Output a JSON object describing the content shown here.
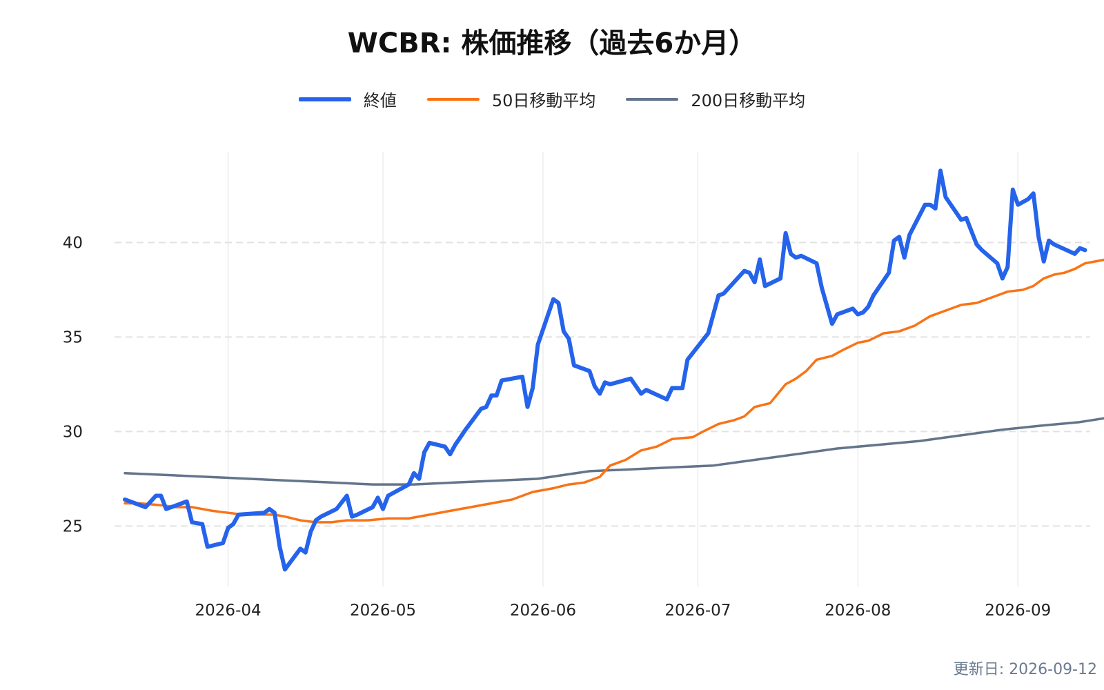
{
  "chart_data": {
    "type": "line",
    "title": "WCBR: 株価推移（過去6か月）",
    "xlabel": "",
    "ylabel": "",
    "x_ticks": [
      "2026-04",
      "2026-05",
      "2026-06",
      "2026-07",
      "2026-08",
      "2026-09"
    ],
    "y_ticks": [
      25,
      30,
      35,
      40
    ],
    "xlim": [
      "2026-03-10",
      "2026-09-15"
    ],
    "ylim": [
      21.8,
      44.8
    ],
    "grid": {
      "x": true,
      "y": true
    },
    "legend_position": "top-center",
    "series": [
      {
        "name": "終値",
        "color": "#2563eb",
        "points": [
          [
            "2026-03-12",
            26.4
          ],
          [
            "2026-03-13",
            26.3
          ],
          [
            "2026-03-16",
            26.0
          ],
          [
            "2026-03-17",
            26.3
          ],
          [
            "2026-03-18",
            26.6
          ],
          [
            "2026-03-19",
            26.6
          ],
          [
            "2026-03-20",
            25.9
          ],
          [
            "2026-03-23",
            26.2
          ],
          [
            "2026-03-24",
            26.3
          ],
          [
            "2026-03-25",
            25.2
          ],
          [
            "2026-03-27",
            25.1
          ],
          [
            "2026-03-28",
            23.9
          ],
          [
            "2026-03-31",
            24.1
          ],
          [
            "2026-04-01",
            24.9
          ],
          [
            "2026-04-02",
            25.1
          ],
          [
            "2026-04-03",
            25.6
          ],
          [
            "2026-04-08",
            25.7
          ],
          [
            "2026-04-09",
            25.9
          ],
          [
            "2026-04-10",
            25.7
          ],
          [
            "2026-04-11",
            23.9
          ],
          [
            "2026-04-12",
            22.7
          ],
          [
            "2026-04-15",
            23.8
          ],
          [
            "2026-04-16",
            23.6
          ],
          [
            "2026-04-17",
            24.7
          ],
          [
            "2026-04-18",
            25.3
          ],
          [
            "2026-04-19",
            25.5
          ],
          [
            "2026-04-22",
            25.9
          ],
          [
            "2026-04-24",
            26.6
          ],
          [
            "2026-04-25",
            25.5
          ],
          [
            "2026-04-26",
            25.6
          ],
          [
            "2026-04-29",
            26.0
          ],
          [
            "2026-04-30",
            26.5
          ],
          [
            "2026-05-01",
            25.9
          ],
          [
            "2026-05-02",
            26.6
          ],
          [
            "2026-05-06",
            27.2
          ],
          [
            "2026-05-07",
            27.8
          ],
          [
            "2026-05-08",
            27.5
          ],
          [
            "2026-05-09",
            28.9
          ],
          [
            "2026-05-10",
            29.4
          ],
          [
            "2026-05-13",
            29.2
          ],
          [
            "2026-05-14",
            28.8
          ],
          [
            "2026-05-15",
            29.3
          ],
          [
            "2026-05-17",
            30.1
          ],
          [
            "2026-05-20",
            31.2
          ],
          [
            "2026-05-21",
            31.3
          ],
          [
            "2026-05-22",
            31.9
          ],
          [
            "2026-05-23",
            31.9
          ],
          [
            "2026-05-24",
            32.7
          ],
          [
            "2026-05-28",
            32.9
          ],
          [
            "2026-05-29",
            31.3
          ],
          [
            "2026-05-30",
            32.3
          ],
          [
            "2026-05-31",
            34.6
          ],
          [
            "2026-06-03",
            37.0
          ],
          [
            "2026-06-04",
            36.8
          ],
          [
            "2026-06-05",
            35.3
          ],
          [
            "2026-06-06",
            34.9
          ],
          [
            "2026-06-07",
            33.5
          ],
          [
            "2026-06-10",
            33.2
          ],
          [
            "2026-06-11",
            32.4
          ],
          [
            "2026-06-12",
            32.0
          ],
          [
            "2026-06-13",
            32.6
          ],
          [
            "2026-06-14",
            32.5
          ],
          [
            "2026-06-18",
            32.8
          ],
          [
            "2026-06-20",
            32.0
          ],
          [
            "2026-06-21",
            32.2
          ],
          [
            "2026-06-25",
            31.7
          ],
          [
            "2026-06-26",
            32.3
          ],
          [
            "2026-06-27",
            32.3
          ],
          [
            "2026-06-28",
            32.3
          ],
          [
            "2026-06-29",
            33.8
          ],
          [
            "2026-07-03",
            35.2
          ],
          [
            "2026-07-05",
            37.2
          ],
          [
            "2026-07-06",
            37.3
          ],
          [
            "2026-07-10",
            38.5
          ],
          [
            "2026-07-11",
            38.4
          ],
          [
            "2026-07-12",
            37.9
          ],
          [
            "2026-07-13",
            39.1
          ],
          [
            "2026-07-14",
            37.7
          ],
          [
            "2026-07-17",
            38.1
          ],
          [
            "2026-07-18",
            40.5
          ],
          [
            "2026-07-19",
            39.4
          ],
          [
            "2026-07-20",
            39.2
          ],
          [
            "2026-07-21",
            39.3
          ],
          [
            "2026-07-24",
            38.9
          ],
          [
            "2026-07-25",
            37.6
          ],
          [
            "2026-07-27",
            35.7
          ],
          [
            "2026-07-28",
            36.2
          ],
          [
            "2026-07-31",
            36.5
          ],
          [
            "2026-08-01",
            36.2
          ],
          [
            "2026-08-02",
            36.3
          ],
          [
            "2026-08-03",
            36.6
          ],
          [
            "2026-08-04",
            37.2
          ],
          [
            "2026-08-07",
            38.4
          ],
          [
            "2026-08-08",
            40.1
          ],
          [
            "2026-08-09",
            40.3
          ],
          [
            "2026-08-10",
            39.2
          ],
          [
            "2026-08-11",
            40.4
          ],
          [
            "2026-08-14",
            42.0
          ],
          [
            "2026-08-15",
            42.0
          ],
          [
            "2026-08-16",
            41.8
          ],
          [
            "2026-08-17",
            43.8
          ],
          [
            "2026-08-18",
            42.4
          ],
          [
            "2026-08-21",
            41.2
          ],
          [
            "2026-08-22",
            41.3
          ],
          [
            "2026-08-24",
            39.9
          ],
          [
            "2026-08-25",
            39.6
          ],
          [
            "2026-08-28",
            38.9
          ],
          [
            "2026-08-29",
            38.1
          ],
          [
            "2026-08-30",
            38.7
          ],
          [
            "2026-08-31",
            42.8
          ],
          [
            "2026-09-01",
            42.0
          ],
          [
            "2026-09-03",
            42.3
          ],
          [
            "2026-09-04",
            42.6
          ],
          [
            "2026-09-05",
            40.3
          ],
          [
            "2026-09-06",
            39.0
          ],
          [
            "2026-09-07",
            40.1
          ],
          [
            "2026-09-08",
            39.9
          ],
          [
            "2026-09-12",
            39.4
          ],
          [
            "2026-09-13",
            39.7
          ],
          [
            "2026-09-14",
            39.6
          ]
        ]
      },
      {
        "name": "50日移動平均",
        "color": "#f97316",
        "points": [
          [
            "2026-03-12",
            26.2
          ],
          [
            "2026-03-15",
            26.2
          ],
          [
            "2026-03-19",
            26.1
          ],
          [
            "2026-03-22",
            26.0
          ],
          [
            "2026-03-25",
            26.0
          ],
          [
            "2026-03-27",
            25.9
          ],
          [
            "2026-03-29",
            25.8
          ],
          [
            "2026-04-01",
            25.7
          ],
          [
            "2026-04-04",
            25.6
          ],
          [
            "2026-04-06",
            25.6
          ],
          [
            "2026-04-10",
            25.6
          ],
          [
            "2026-04-12",
            25.5
          ],
          [
            "2026-04-15",
            25.3
          ],
          [
            "2026-04-18",
            25.2
          ],
          [
            "2026-04-21",
            25.2
          ],
          [
            "2026-04-24",
            25.3
          ],
          [
            "2026-04-28",
            25.3
          ],
          [
            "2026-05-02",
            25.4
          ],
          [
            "2026-05-06",
            25.4
          ],
          [
            "2026-05-10",
            25.6
          ],
          [
            "2026-05-14",
            25.8
          ],
          [
            "2026-05-18",
            26.0
          ],
          [
            "2026-05-22",
            26.2
          ],
          [
            "2026-05-26",
            26.4
          ],
          [
            "2026-05-30",
            26.8
          ],
          [
            "2026-06-03",
            27.0
          ],
          [
            "2026-06-06",
            27.2
          ],
          [
            "2026-06-09",
            27.3
          ],
          [
            "2026-06-12",
            27.6
          ],
          [
            "2026-06-14",
            28.2
          ],
          [
            "2026-06-17",
            28.5
          ],
          [
            "2026-06-20",
            29.0
          ],
          [
            "2026-06-23",
            29.2
          ],
          [
            "2026-06-26",
            29.6
          ],
          [
            "2026-06-30",
            29.7
          ],
          [
            "2026-07-02",
            30.0
          ],
          [
            "2026-07-05",
            30.4
          ],
          [
            "2026-07-08",
            30.6
          ],
          [
            "2026-07-10",
            30.8
          ],
          [
            "2026-07-12",
            31.3
          ],
          [
            "2026-07-15",
            31.5
          ],
          [
            "2026-07-18",
            32.5
          ],
          [
            "2026-07-20",
            32.8
          ],
          [
            "2026-07-22",
            33.2
          ],
          [
            "2026-07-24",
            33.8
          ],
          [
            "2026-07-27",
            34.0
          ],
          [
            "2026-07-29",
            34.3
          ],
          [
            "2026-08-01",
            34.7
          ],
          [
            "2026-08-03",
            34.8
          ],
          [
            "2026-08-06",
            35.2
          ],
          [
            "2026-08-09",
            35.3
          ],
          [
            "2026-08-12",
            35.6
          ],
          [
            "2026-08-15",
            36.1
          ],
          [
            "2026-08-18",
            36.4
          ],
          [
            "2026-08-21",
            36.7
          ],
          [
            "2026-08-24",
            36.8
          ],
          [
            "2026-08-27",
            37.1
          ],
          [
            "2026-08-30",
            37.4
          ],
          [
            "2026-09-02",
            37.5
          ],
          [
            "2026-09-04",
            37.7
          ],
          [
            "2026-09-06",
            38.1
          ],
          [
            "2026-09-08",
            38.3
          ],
          [
            "2026-09-10",
            38.4
          ],
          [
            "2026-09-12",
            38.6
          ],
          [
            "2026-09-14",
            38.9
          ],
          [
            "2026-09-16",
            39.0
          ],
          [
            "2026-09-18",
            39.1
          ],
          [
            "2026-09-20",
            39.3
          ]
        ]
      },
      {
        "name": "200日移動平均",
        "color": "#64748b",
        "points": [
          [
            "2026-03-12",
            27.8
          ],
          [
            "2026-03-20",
            27.7
          ],
          [
            "2026-03-28",
            27.6
          ],
          [
            "2026-04-05",
            27.5
          ],
          [
            "2026-04-13",
            27.4
          ],
          [
            "2026-04-21",
            27.3
          ],
          [
            "2026-04-29",
            27.2
          ],
          [
            "2026-05-07",
            27.2
          ],
          [
            "2026-05-15",
            27.3
          ],
          [
            "2026-05-23",
            27.4
          ],
          [
            "2026-05-31",
            27.5
          ],
          [
            "2026-06-05",
            27.7
          ],
          [
            "2026-06-10",
            27.9
          ],
          [
            "2026-06-18",
            28.0
          ],
          [
            "2026-06-26",
            28.1
          ],
          [
            "2026-07-04",
            28.2
          ],
          [
            "2026-07-12",
            28.5
          ],
          [
            "2026-07-20",
            28.8
          ],
          [
            "2026-07-28",
            29.1
          ],
          [
            "2026-08-05",
            29.3
          ],
          [
            "2026-08-13",
            29.5
          ],
          [
            "2026-08-21",
            29.8
          ],
          [
            "2026-08-29",
            30.1
          ],
          [
            "2026-09-05",
            30.3
          ],
          [
            "2026-09-13",
            30.5
          ],
          [
            "2026-09-20",
            30.8
          ]
        ]
      }
    ]
  },
  "footer": {
    "updated_label": "更新日: 2026-09-12"
  }
}
